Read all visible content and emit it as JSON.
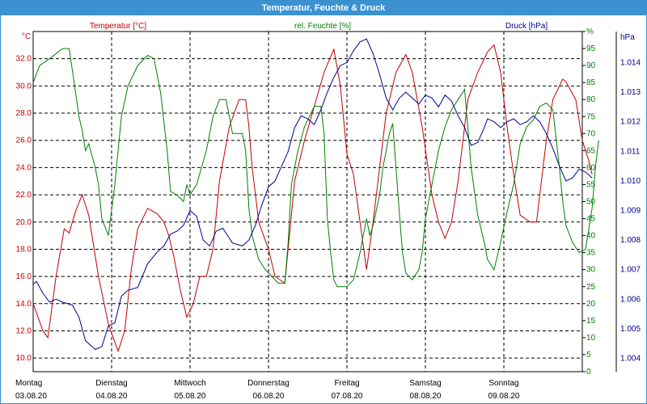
{
  "window": {
    "title": "Temperatur, Feuchte & Druck"
  },
  "colors": {
    "temperature": "#c00000",
    "humidity": "#008000",
    "pressure": "#000090",
    "titlebar": "#3c92d1"
  },
  "chart_data": {
    "type": "line",
    "title": "Temperatur, Feuchte & Druck",
    "grid": true,
    "x_range": [
      0,
      168
    ],
    "x_ticks": [
      {
        "x": 0,
        "day": "Montag",
        "date": "03.08.20"
      },
      {
        "x": 24,
        "day": "Dienstag",
        "date": "04.08.20"
      },
      {
        "x": 48,
        "day": "Mittwoch",
        "date": "05.08.20"
      },
      {
        "x": 72,
        "day": "Donnerstag",
        "date": "06.08.20"
      },
      {
        "x": 96,
        "day": "Freitag",
        "date": "07.08.20"
      },
      {
        "x": 120,
        "day": "Samstag",
        "date": "08.08.20"
      },
      {
        "x": 144,
        "day": "Sonntag",
        "date": "09.08.20"
      }
    ],
    "axes": {
      "temperature": {
        "unit": "°C",
        "label": "Temperatur [°C]",
        "range": [
          9.0,
          34.0
        ],
        "ticks": [
          "10.0",
          "12.0",
          "14.0",
          "16.0",
          "18.0",
          "20.0",
          "22.0",
          "24.0",
          "26.0",
          "28.0",
          "30.0",
          "32.0"
        ]
      },
      "humidity": {
        "unit": "%",
        "label": "rel. Feuchte [%]",
        "range": [
          0,
          100
        ],
        "ticks": [
          "0",
          "5",
          "10",
          "15",
          "20",
          "25",
          "30",
          "35",
          "40",
          "45",
          "50",
          "55",
          "60",
          "65",
          "70",
          "75",
          "80",
          "85",
          "90",
          "95",
          "%"
        ]
      },
      "pressure": {
        "unit": "hPa",
        "label": "Druck [hPa]",
        "range": [
          1003.55,
          1015.05
        ],
        "ticks": [
          "1.004",
          "1.005",
          "1.006",
          "1.007",
          "1.008",
          "1.009",
          "1.010",
          "1.011",
          "1.012",
          "1.013",
          "1.014",
          "hPa"
        ]
      }
    },
    "series": [
      {
        "name": "Temperatur [°C]",
        "axis": "temperature",
        "points": [
          [
            0,
            14
          ],
          [
            3,
            12
          ],
          [
            4.5,
            11.5
          ],
          [
            7,
            16
          ],
          [
            9.5,
            19.5
          ],
          [
            11,
            19.2
          ],
          [
            13,
            20.8
          ],
          [
            15,
            22
          ],
          [
            17,
            20.5
          ],
          [
            20,
            16
          ],
          [
            23,
            12.5
          ],
          [
            26,
            10.5
          ],
          [
            28,
            12
          ],
          [
            30,
            16.5
          ],
          [
            32,
            19.5
          ],
          [
            35,
            21
          ],
          [
            38,
            20.6
          ],
          [
            40,
            20
          ],
          [
            41.5,
            19
          ],
          [
            43,
            17.5
          ],
          [
            45,
            15
          ],
          [
            47,
            13
          ],
          [
            49,
            14
          ],
          [
            51,
            16
          ],
          [
            53,
            16
          ],
          [
            55,
            18
          ],
          [
            57,
            23
          ],
          [
            60,
            27
          ],
          [
            63,
            29
          ],
          [
            65,
            29
          ],
          [
            66,
            27
          ],
          [
            67,
            24
          ],
          [
            69,
            20
          ],
          [
            72,
            18
          ],
          [
            74,
            16
          ],
          [
            77,
            15.5
          ],
          [
            80,
            23
          ],
          [
            83,
            26
          ],
          [
            86,
            28.5
          ],
          [
            89,
            31
          ],
          [
            92,
            32.7
          ],
          [
            94,
            30
          ],
          [
            96,
            25
          ],
          [
            98,
            23.5
          ],
          [
            100,
            20
          ],
          [
            102,
            16.5
          ],
          [
            104,
            20
          ],
          [
            106,
            24
          ],
          [
            108,
            28
          ],
          [
            111,
            31
          ],
          [
            114,
            32.3
          ],
          [
            116,
            31
          ],
          [
            119,
            27
          ],
          [
            122,
            22
          ],
          [
            124,
            20
          ],
          [
            126,
            18.8
          ],
          [
            128,
            20
          ],
          [
            130,
            23
          ],
          [
            133,
            29
          ],
          [
            136,
            31
          ],
          [
            139,
            32.5
          ],
          [
            141,
            33
          ],
          [
            143,
            31
          ],
          [
            145,
            27
          ],
          [
            147,
            23.5
          ],
          [
            149,
            20.5
          ],
          [
            152,
            20
          ],
          [
            154,
            20
          ],
          [
            157,
            26
          ],
          [
            159,
            29
          ],
          [
            162,
            30.5
          ],
          [
            163,
            30.3
          ],
          [
            166,
            29
          ],
          [
            168,
            26
          ],
          [
            170,
            24.5
          ],
          [
            171,
            23.5
          ]
        ]
      },
      {
        "name": "rel. Feuchte [%]",
        "axis": "humidity",
        "points": [
          [
            0,
            85
          ],
          [
            2,
            90
          ],
          [
            5,
            92
          ],
          [
            9,
            95
          ],
          [
            11,
            95
          ],
          [
            13,
            82
          ],
          [
            14,
            75
          ],
          [
            15,
            71
          ],
          [
            16,
            65
          ],
          [
            17,
            67
          ],
          [
            19,
            60
          ],
          [
            20,
            55
          ],
          [
            21,
            45
          ],
          [
            23,
            40
          ],
          [
            25,
            55
          ],
          [
            27,
            75
          ],
          [
            29,
            84
          ],
          [
            32,
            90
          ],
          [
            35,
            93
          ],
          [
            37,
            92
          ],
          [
            39,
            82
          ],
          [
            41,
            65
          ],
          [
            42,
            53
          ],
          [
            44,
            52
          ],
          [
            46,
            50
          ],
          [
            47,
            55
          ],
          [
            48,
            52
          ],
          [
            50,
            55
          ],
          [
            53,
            65
          ],
          [
            55,
            75
          ],
          [
            57,
            80
          ],
          [
            59,
            80
          ],
          [
            61,
            70
          ],
          [
            64,
            70
          ],
          [
            65,
            65
          ],
          [
            66,
            48
          ],
          [
            67,
            40
          ],
          [
            69,
            33
          ],
          [
            71,
            30
          ],
          [
            73,
            28
          ],
          [
            75,
            26
          ],
          [
            77,
            26
          ],
          [
            78,
            38
          ],
          [
            79,
            55
          ],
          [
            81,
            65
          ],
          [
            83,
            72
          ],
          [
            86,
            78
          ],
          [
            88,
            78
          ],
          [
            89,
            70
          ],
          [
            90,
            45
          ],
          [
            91,
            35
          ],
          [
            92,
            27
          ],
          [
            93,
            25
          ],
          [
            96,
            25
          ],
          [
            98,
            27
          ],
          [
            100,
            35
          ],
          [
            102,
            45
          ],
          [
            103,
            40
          ],
          [
            104,
            43
          ],
          [
            106,
            52
          ],
          [
            107,
            60
          ],
          [
            109,
            70
          ],
          [
            110,
            73
          ],
          [
            111,
            60
          ],
          [
            112,
            47
          ],
          [
            113,
            35
          ],
          [
            114,
            29
          ],
          [
            116,
            27
          ],
          [
            118,
            30
          ],
          [
            119,
            35
          ],
          [
            120,
            45
          ],
          [
            122,
            55
          ],
          [
            124,
            65
          ],
          [
            126,
            72
          ],
          [
            128,
            77
          ],
          [
            130,
            80
          ],
          [
            132,
            83
          ],
          [
            134,
            60
          ],
          [
            136,
            46
          ],
          [
            138,
            38
          ],
          [
            139,
            33
          ],
          [
            141,
            30
          ],
          [
            143,
            38
          ],
          [
            145,
            47
          ],
          [
            147,
            55
          ],
          [
            149,
            67
          ],
          [
            151,
            72
          ],
          [
            153,
            74
          ],
          [
            155,
            78
          ],
          [
            157,
            79
          ],
          [
            159,
            77
          ],
          [
            161,
            60
          ],
          [
            162,
            50
          ],
          [
            163,
            43
          ],
          [
            165,
            38
          ],
          [
            167,
            35
          ],
          [
            169,
            36
          ],
          [
            171,
            48
          ],
          [
            172,
            60
          ],
          [
            173,
            68
          ]
        ]
      },
      {
        "name": "Druck [hPa]",
        "axis": "pressure",
        "points": [
          [
            0,
            1006.5
          ],
          [
            1,
            1006.6
          ],
          [
            3,
            1006.2
          ],
          [
            5,
            1005.9
          ],
          [
            7,
            1006
          ],
          [
            9,
            1005.9
          ],
          [
            12,
            1005.8
          ],
          [
            14,
            1005.4
          ],
          [
            16,
            1004.6
          ],
          [
            19,
            1004.3
          ],
          [
            21,
            1004.4
          ],
          [
            23,
            1005.1
          ],
          [
            25,
            1005.2
          ],
          [
            27,
            1006.1
          ],
          [
            29,
            1006.3
          ],
          [
            32,
            1006.4
          ],
          [
            35,
            1007.2
          ],
          [
            38,
            1007.6
          ],
          [
            40,
            1007.8
          ],
          [
            42,
            1008.2
          ],
          [
            44,
            1008.3
          ],
          [
            46,
            1008.5
          ],
          [
            48,
            1009
          ],
          [
            50,
            1008.8
          ],
          [
            52,
            1008
          ],
          [
            54,
            1007.8
          ],
          [
            56,
            1008.3
          ],
          [
            58,
            1008.4
          ],
          [
            61,
            1007.9
          ],
          [
            64,
            1007.8
          ],
          [
            66,
            1008
          ],
          [
            68,
            1008.5
          ],
          [
            70,
            1009.2
          ],
          [
            72,
            1009.8
          ],
          [
            74,
            1010
          ],
          [
            76,
            1010.5
          ],
          [
            78,
            1011
          ],
          [
            80,
            1011.8
          ],
          [
            82,
            1012.2
          ],
          [
            84,
            1012.1
          ],
          [
            86,
            1011.9
          ],
          [
            88,
            1012.4
          ],
          [
            90,
            1013
          ],
          [
            92,
            1013.5
          ],
          [
            94,
            1013.9
          ],
          [
            96,
            1014
          ],
          [
            98,
            1014.4
          ],
          [
            100,
            1014.7
          ],
          [
            102,
            1014.8
          ],
          [
            104,
            1014.3
          ],
          [
            106,
            1013.6
          ],
          [
            108,
            1012.8
          ],
          [
            110,
            1012.4
          ],
          [
            112,
            1012.8
          ],
          [
            114,
            1013
          ],
          [
            116,
            1012.8
          ],
          [
            118,
            1012.6
          ],
          [
            120,
            1012.9
          ],
          [
            122,
            1012.8
          ],
          [
            124,
            1012.5
          ],
          [
            126,
            1012.9
          ],
          [
            128,
            1012.7
          ],
          [
            130,
            1012.2
          ],
          [
            132,
            1011.8
          ],
          [
            134,
            1011.2
          ],
          [
            136,
            1011.3
          ],
          [
            138,
            1011.8
          ],
          [
            139,
            1012.1
          ],
          [
            141,
            1012
          ],
          [
            143,
            1011.8
          ],
          [
            145,
            1012
          ],
          [
            147,
            1012.1
          ],
          [
            149,
            1011.9
          ],
          [
            151,
            1012
          ],
          [
            153,
            1012.2
          ],
          [
            155,
            1012
          ],
          [
            157,
            1011.6
          ],
          [
            159,
            1011.1
          ],
          [
            161,
            1010.5
          ],
          [
            163,
            1010
          ],
          [
            165,
            1010.1
          ],
          [
            167,
            1010.4
          ],
          [
            169,
            1010.3
          ],
          [
            171,
            1010.1
          ]
        ]
      }
    ]
  }
}
